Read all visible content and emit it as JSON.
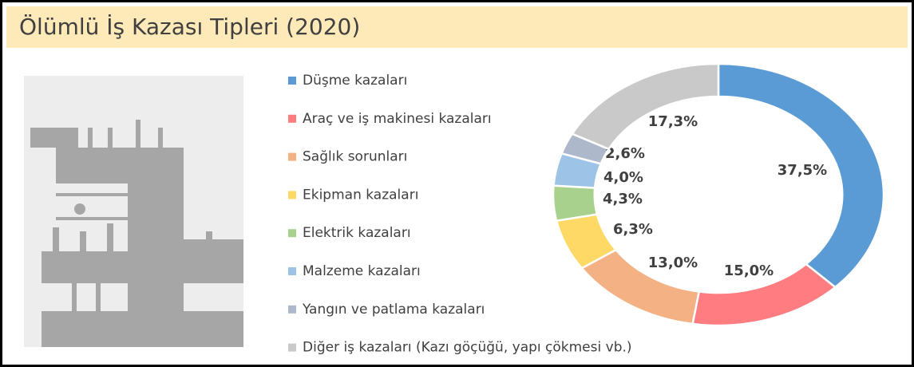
{
  "chart_data": {
    "type": "donut",
    "title": "Ölümlü İş Kazası Tipleri (2020)",
    "categories": [
      "Düşme kazaları",
      "Araç ve iş makinesi kazaları",
      "Sağlık sorunları",
      "Ekipman kazaları",
      "Elektrik kazaları",
      "Malzeme kazaları",
      "Yangın ve patlama kazaları",
      "Diğer iş kazaları (Kazı göçüğü, yapı çökmesi vb.)"
    ],
    "values": [
      37.5,
      15.0,
      13.0,
      6.3,
      4.3,
      4.0,
      2.6,
      17.3
    ],
    "value_labels": [
      "37,5%",
      "15,0%",
      "13,0%",
      "6,3%",
      "4,3%",
      "4,0%",
      "2,6%",
      "17,3%"
    ],
    "colors": [
      "#5b9bd5",
      "#ff7c80",
      "#f4b183",
      "#ffd966",
      "#a9d18e",
      "#9dc3e6",
      "#adb9ca",
      "#c9c9c9"
    ]
  }
}
